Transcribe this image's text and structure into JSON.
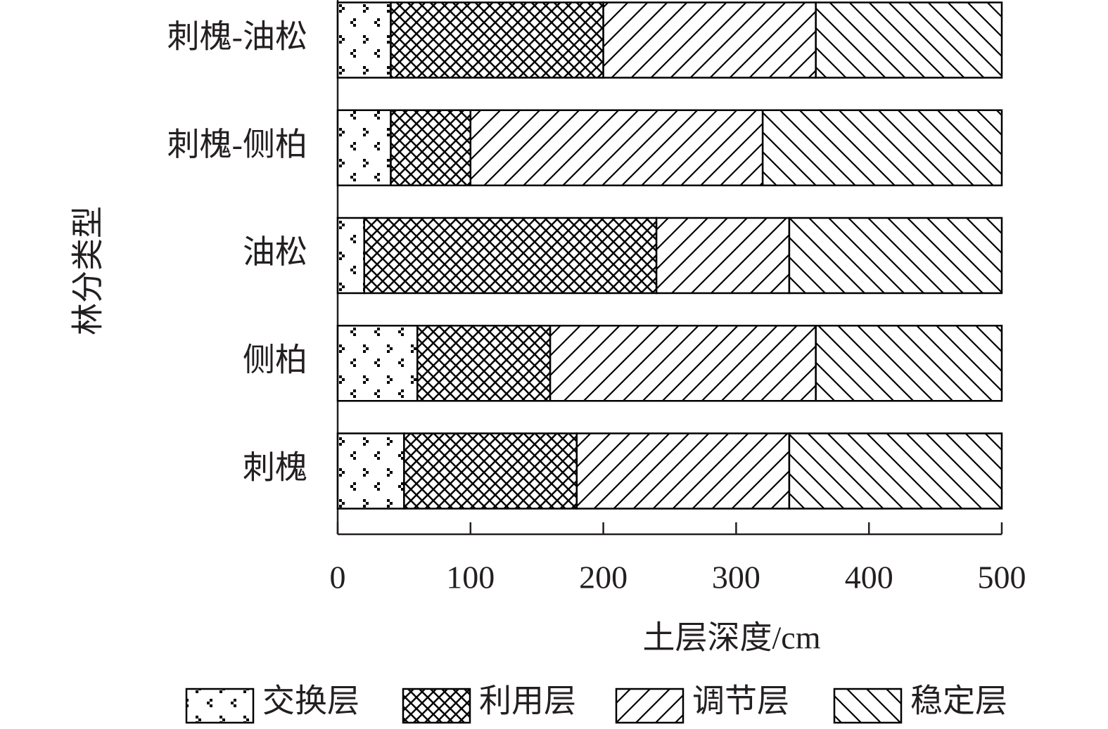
{
  "chart_data": {
    "type": "stacked-barh",
    "x_label": "土层深度/cm",
    "y_label": "林分类型",
    "categories": [
      "刺槐",
      "侧柏",
      "油松",
      "刺槐-侧柏",
      "刺槐-油松"
    ],
    "series": [
      {
        "name": "交换层",
        "color": "#000000",
        "pattern": "dots",
        "values": [
          50,
          60,
          20,
          40,
          40
        ]
      },
      {
        "name": "利用层",
        "color": "#000000",
        "pattern": "crosshatch",
        "values": [
          130,
          100,
          220,
          60,
          160
        ]
      },
      {
        "name": "调节层",
        "color": "#000000",
        "pattern": "forward-diagonal",
        "values": [
          160,
          200,
          100,
          220,
          160
        ]
      },
      {
        "name": "稳定层",
        "color": "#000000",
        "pattern": "back-diagonal",
        "values": [
          160,
          140,
          160,
          180,
          140
        ]
      }
    ],
    "xlim": [
      0,
      500
    ],
    "xticks": [
      0,
      100,
      200,
      300,
      400,
      500
    ],
    "legend": "bottom"
  }
}
